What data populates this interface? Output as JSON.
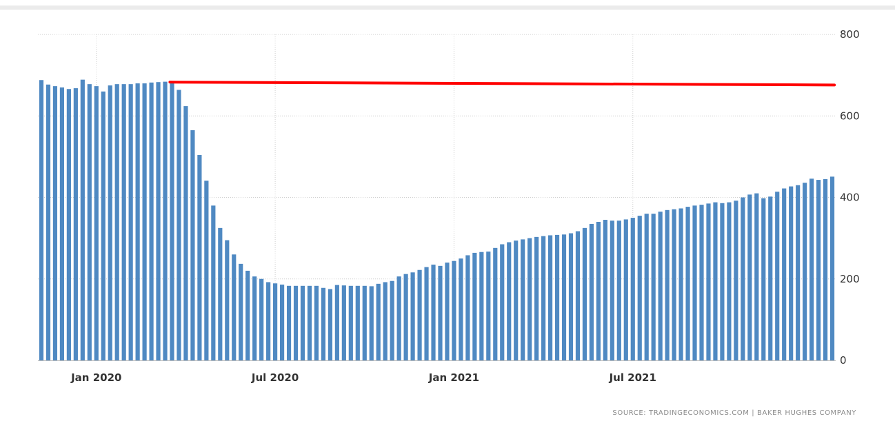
{
  "chart_data": {
    "type": "bar",
    "x_ticks": [
      "Jan 2020",
      "Jul 2020",
      "Jan 2021",
      "Jul 2021"
    ],
    "y_ticks": [
      "0",
      "200",
      "400",
      "600",
      "800"
    ],
    "ylim": [
      0,
      800
    ],
    "grid": true,
    "series": [
      {
        "type": "bar",
        "values": [
          688,
          677,
          673,
          670,
          666,
          668,
          689,
          678,
          673,
          660,
          675,
          678,
          678,
          678,
          680,
          680,
          682,
          683,
          684,
          683,
          664,
          624,
          565,
          504,
          441,
          380,
          325,
          295,
          260,
          237,
          220,
          206,
          200,
          192,
          189,
          186,
          183,
          183,
          183,
          183,
          183,
          178,
          175,
          185,
          184,
          183,
          183,
          183,
          182,
          188,
          192,
          195,
          206,
          212,
          216,
          222,
          229,
          235,
          232,
          240,
          244,
          250,
          258,
          264,
          266,
          267,
          276,
          285,
          290,
          294,
          297,
          300,
          303,
          305,
          307,
          308,
          309,
          312,
          317,
          325,
          335,
          340,
          345,
          343,
          343,
          346,
          350,
          355,
          360,
          360,
          365,
          369,
          371,
          373,
          377,
          380,
          382,
          385,
          388,
          386,
          388,
          392,
          400,
          407,
          410,
          398,
          402,
          414,
          422,
          427,
          430,
          436,
          446,
          443,
          445,
          451
        ]
      },
      {
        "type": "line",
        "color": "#ff0000",
        "x_start": 19,
        "x_end": 115,
        "values": [
          683,
          676
        ]
      }
    ],
    "bar_color": "#4f89c2"
  },
  "source": "SOURCE: TRADINGECONOMICS.COM  |  BAKER HUGHES COMPANY"
}
